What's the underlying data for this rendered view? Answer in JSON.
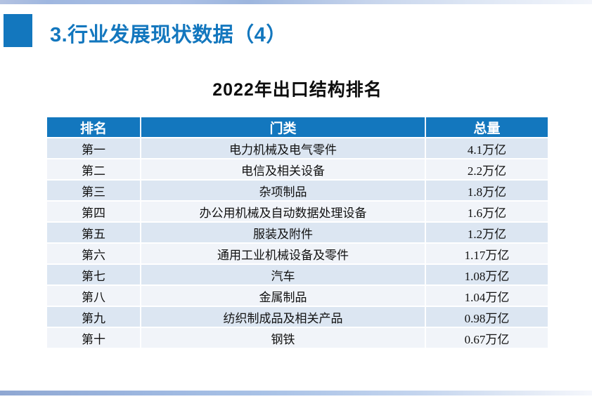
{
  "slide": {
    "title": "3.行业发展现状数据（4）",
    "table_title": "2022年出口结构排名"
  },
  "table": {
    "headers": [
      "排名",
      "门类",
      "总量"
    ],
    "rows": [
      {
        "rank": "第一",
        "category": "电力机械及电气零件",
        "total": "4.1万亿"
      },
      {
        "rank": "第二",
        "category": "电信及相关设备",
        "total": "2.2万亿"
      },
      {
        "rank": "第三",
        "category": "杂项制品",
        "total": "1.8万亿"
      },
      {
        "rank": "第四",
        "category": "办公用机械及自动数据处理设备",
        "total": "1.6万亿"
      },
      {
        "rank": "第五",
        "category": "服装及附件",
        "total": "1.2万亿"
      },
      {
        "rank": "第六",
        "category": "通用工业机械设备及零件",
        "total": "1.17万亿"
      },
      {
        "rank": "第七",
        "category": "汽车",
        "total": "1.08万亿"
      },
      {
        "rank": "第八",
        "category": "金属制品",
        "total": "1.04万亿"
      },
      {
        "rank": "第九",
        "category": "纺织制成品及相关产品",
        "total": "0.98万亿"
      },
      {
        "rank": "第十",
        "category": "钢铁",
        "total": "0.67万亿"
      }
    ]
  },
  "colors": {
    "accent_blue": "#1377BE",
    "table_header_bg": "#1377BE",
    "row_band": "#DCE6F2",
    "row_plain": "#F1F4F9"
  }
}
